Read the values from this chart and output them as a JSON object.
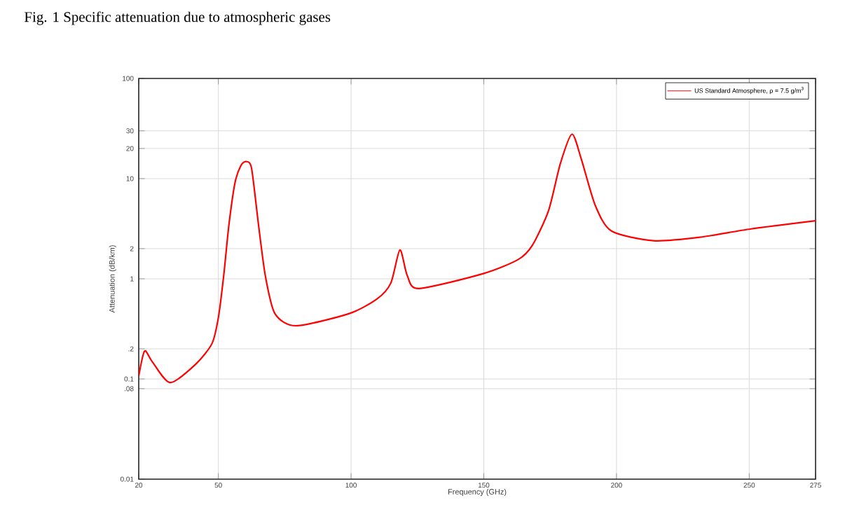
{
  "chart_data": {
    "type": "line",
    "title": "Fig. 1 Specific attenuation due to atmospheric gases",
    "xlabel": "Frequency (GHz)",
    "ylabel": "Attenuation (dB/km)",
    "log": "y",
    "grid": true,
    "legend": "top right",
    "line_style": "solid",
    "marker": "none",
    "xlim": [
      20,
      275
    ],
    "xticks": [
      20,
      50,
      100,
      150,
      200,
      250,
      275
    ],
    "ylim": [
      0.01,
      100
    ],
    "yticks": [
      0.01,
      {
        "value": 0.08,
        "label": ".08"
      },
      0.1,
      {
        "value": 0.2,
        "label": ".2"
      },
      1,
      2,
      10,
      20,
      30,
      100
    ],
    "series": [
      {
        "name": "US Standard Atmosphere, ρ = 7.5 g/m$^{3}$",
        "color": "#ff0000",
        "x": [
          20,
          22.2,
          25,
          31.8,
          41.4,
          47.6,
          50,
          52,
          54,
          56.3,
          58.5,
          60.4,
          62.5,
          65.1,
          67.7,
          71.3,
          79.2,
          99.3,
          109.8,
          115,
          118.4,
          121.2,
          125.6,
          150,
          163,
          168.3,
          174.4,
          178.8,
          183.2,
          186.7,
          192,
          198.1,
          213.9,
          231.4,
          250.7,
          275
        ],
        "values": [
          0.107,
          0.19,
          0.15,
          0.092,
          0.14,
          0.226,
          0.41,
          1.07,
          3.5,
          9.2,
          13.5,
          14.8,
          12.7,
          3.5,
          1.07,
          0.45,
          0.34,
          0.45,
          0.63,
          0.91,
          1.94,
          1.07,
          0.8,
          1.13,
          1.56,
          2.16,
          4.8,
          14,
          27.8,
          15.8,
          5.4,
          3.0,
          2.4,
          2.6,
          3.15,
          3.8
        ]
      }
    ]
  }
}
